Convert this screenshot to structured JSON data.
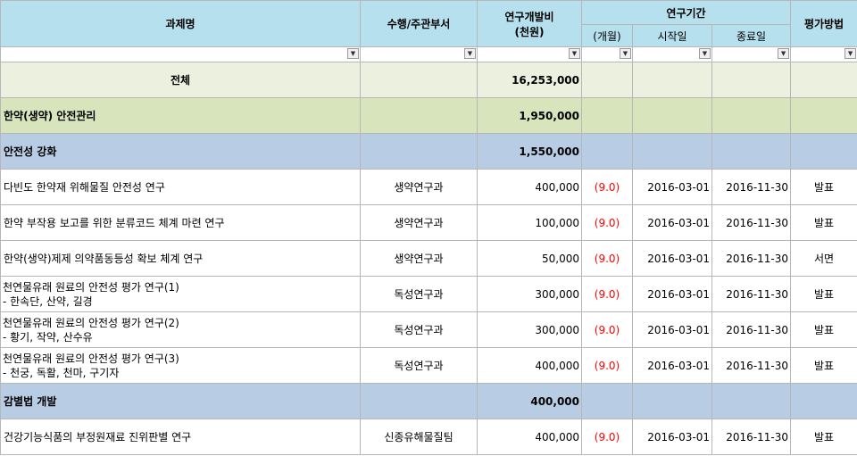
{
  "header": {
    "col_name": "과제명",
    "col_dept": "수행/주관부서",
    "col_budget_line1": "연구개발비",
    "col_budget_line2": "(천원)",
    "col_period": "연구기간",
    "col_months": "(개월)",
    "col_start": "시작일",
    "col_end": "종료일",
    "col_eval": "평가방법"
  },
  "filter_icon": "dropdown-arrow-icon",
  "total": {
    "label": "전체",
    "budget": "16,253,000"
  },
  "category1": {
    "label": "한약(생약) 안전관리",
    "budget": "1,950,000"
  },
  "category2": {
    "label": "안전성 강화",
    "budget": "1,550,000"
  },
  "rows": [
    {
      "name": "다빈도 한약재 위해물질 안전성 연구",
      "dept": "생약연구과",
      "budget": "400,000",
      "months": "(9.0)",
      "start": "2016-03-01",
      "end": "2016-11-30",
      "eval": "발표"
    },
    {
      "name": "한약 부작용 보고를 위한 분류코드 체계 마련 연구",
      "dept": "생약연구과",
      "budget": "100,000",
      "months": "(9.0)",
      "start": "2016-03-01",
      "end": "2016-11-30",
      "eval": "발표"
    },
    {
      "name": "한약(생약)제제 의약품동등성 확보 체계 연구",
      "dept": "생약연구과",
      "budget": "50,000",
      "months": "(9.0)",
      "start": "2016-03-01",
      "end": "2016-11-30",
      "eval": "서면"
    },
    {
      "name": "천연물유래 원료의 안전성 평가 연구(1)",
      "name2": "- 한속단, 산약, 길경",
      "dept": "독성연구과",
      "budget": "300,000",
      "months": "(9.0)",
      "start": "2016-03-01",
      "end": "2016-11-30",
      "eval": "발표"
    },
    {
      "name": "천연물유래 원료의 안전성 평가 연구(2)",
      "name2": "- 황기, 작약, 산수유",
      "dept": "독성연구과",
      "budget": "300,000",
      "months": "(9.0)",
      "start": "2016-03-01",
      "end": "2016-11-30",
      "eval": "발표"
    },
    {
      "name": "천연물유래 원료의 안전성 평가 연구(3)",
      "name2": "- 천궁, 독활, 천마, 구기자",
      "dept": "독성연구과",
      "budget": "400,000",
      "months": "(9.0)",
      "start": "2016-03-01",
      "end": "2016-11-30",
      "eval": "발표"
    }
  ],
  "category3": {
    "label": "감별법 개발",
    "budget": "400,000"
  },
  "rows2": [
    {
      "name": "건강기능식품의 부정원재료 진위판별 연구",
      "dept": "신종유해물질팀",
      "budget": "400,000",
      "months": "(9.0)",
      "start": "2016-03-01",
      "end": "2016-11-30",
      "eval": "발표"
    }
  ]
}
